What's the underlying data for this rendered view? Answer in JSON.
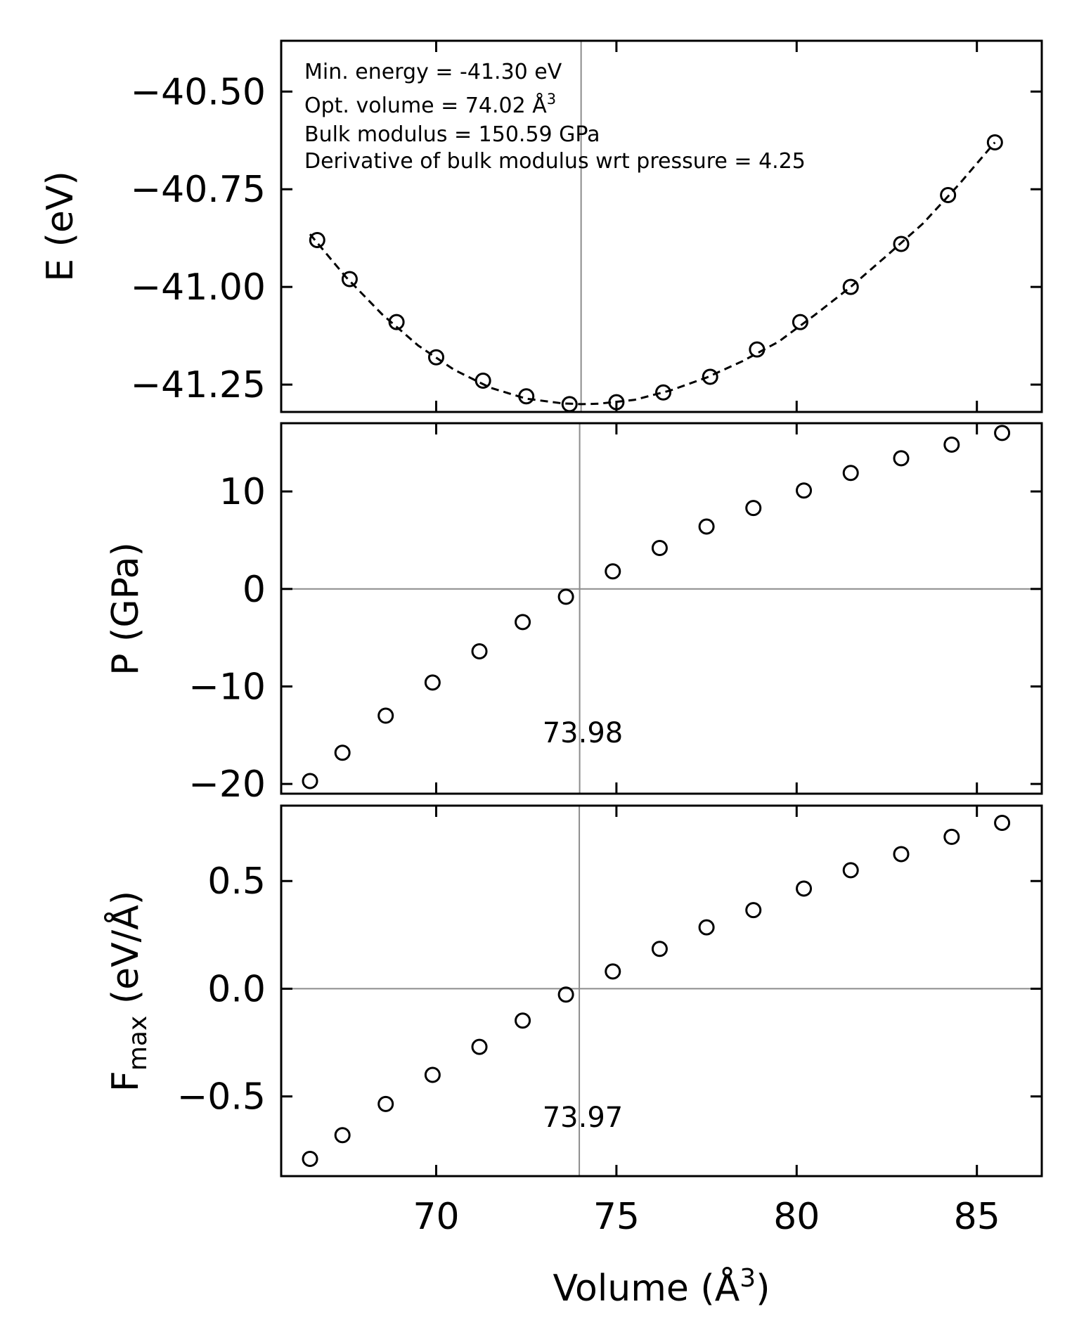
{
  "chart_data": [
    {
      "type": "scatter",
      "panel": "energy",
      "ylabel": "E (eV)",
      "ylim": [
        -41.32,
        -40.37
      ],
      "yticks": [
        -40.5,
        -40.75,
        -41.0,
        -41.25
      ],
      "ytick_labels": [
        "−40.50",
        "−40.75",
        "−41.00",
        "−41.25"
      ],
      "series": [
        {
          "name": "E(V) data",
          "x": [
            66.7,
            67.6,
            68.9,
            70.0,
            71.3,
            72.5,
            73.7,
            75.0,
            76.3,
            77.6,
            78.9,
            80.1,
            81.5,
            82.9,
            84.2,
            85.5
          ],
          "y": [
            -40.88,
            -40.98,
            -41.09,
            -41.18,
            -41.24,
            -41.28,
            -41.3,
            -41.295,
            -41.27,
            -41.23,
            -41.16,
            -41.09,
            -41.0,
            -40.89,
            -40.765,
            -40.63
          ]
        },
        {
          "name": "Birch-Murnaghan fit",
          "style": "dashed",
          "x": [
            66.5,
            67.5,
            68.5,
            69.5,
            70.5,
            71.5,
            72.5,
            73.5,
            74.02,
            74.5,
            75.5,
            76.5,
            77.5,
            78.5,
            79.5,
            80.5,
            81.5,
            82.5,
            83.5,
            84.5,
            85.5
          ],
          "y": [
            -40.865,
            -40.975,
            -41.07,
            -41.15,
            -41.212,
            -41.258,
            -41.286,
            -41.298,
            -41.3,
            -41.299,
            -41.289,
            -41.265,
            -41.232,
            -41.19,
            -41.14,
            -41.072,
            -41.0,
            -40.92,
            -40.838,
            -40.738,
            -40.63
          ]
        }
      ],
      "annotations": [
        "Min. energy = -41.30 eV",
        "Opt. volume = 74.02 Å",
        "Bulk modulus = 150.59 GPa",
        "Derivative of bulk modulus wrt pressure = 4.25"
      ],
      "annotation_superscript": "3",
      "vline": 74.02
    },
    {
      "type": "scatter",
      "panel": "pressure",
      "ylabel": "P (GPa)",
      "ylim": [
        -21,
        17
      ],
      "yticks": [
        10,
        0,
        -10,
        -20
      ],
      "ytick_labels": [
        "10",
        "0",
        "−10",
        "−20"
      ],
      "series": [
        {
          "name": "P(V) data",
          "x": [
            66.5,
            67.4,
            68.6,
            69.9,
            71.2,
            72.4,
            73.6,
            74.9,
            76.2,
            77.5,
            78.8,
            80.2,
            81.5,
            82.9,
            84.3,
            85.7
          ],
          "y": [
            -19.7,
            -16.8,
            -13.0,
            -9.6,
            -6.4,
            -3.4,
            -0.8,
            1.8,
            4.2,
            6.4,
            8.3,
            10.1,
            11.9,
            13.4,
            14.8,
            16.0
          ]
        }
      ],
      "hline": 0,
      "vline": 73.98,
      "marker_label": "73.98"
    },
    {
      "type": "scatter",
      "panel": "force",
      "ylabel": "F",
      "ylabel_sub": "max",
      "ylabel_unit": " (eV/Å)",
      "ylim": [
        -0.87,
        0.85
      ],
      "yticks": [
        0.5,
        0.0,
        -0.5
      ],
      "ytick_labels": [
        "0.5",
        "0.0",
        "−0.5"
      ],
      "series": [
        {
          "name": "Fmax(V) data",
          "x": [
            66.5,
            67.4,
            68.6,
            69.9,
            71.2,
            72.4,
            73.6,
            74.9,
            76.2,
            77.5,
            78.8,
            80.2,
            81.5,
            82.9,
            84.3,
            85.7
          ],
          "y": [
            -0.79,
            -0.68,
            -0.535,
            -0.4,
            -0.27,
            -0.148,
            -0.027,
            0.08,
            0.185,
            0.285,
            0.365,
            0.465,
            0.55,
            0.625,
            0.705,
            0.77
          ]
        }
      ],
      "hline": 0,
      "vline": 73.97,
      "marker_label": "73.97"
    }
  ],
  "x_axis": {
    "label": "Volume (Å",
    "label_superscript": "3",
    "label_close": ")",
    "xlim": [
      65.7,
      86.8
    ],
    "ticks": [
      70,
      75,
      80,
      85
    ],
    "tick_labels": [
      "70",
      "75",
      "80",
      "85"
    ]
  }
}
